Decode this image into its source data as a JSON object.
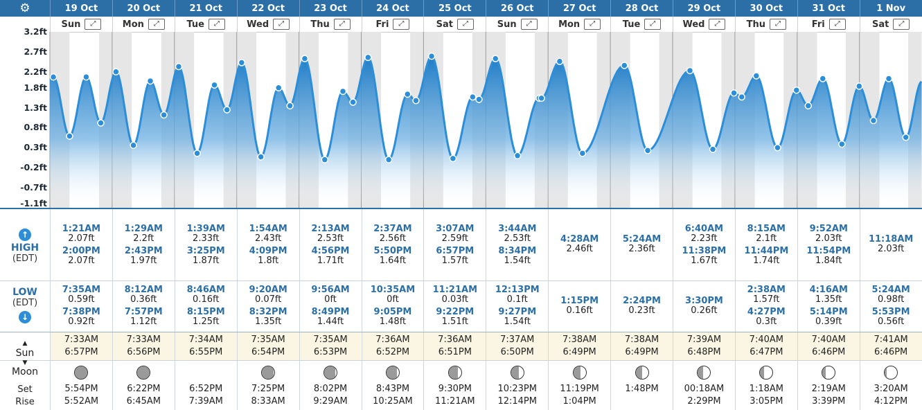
{
  "header": {
    "settings_icon": "gear-icon"
  },
  "days": [
    {
      "date": "19 Oct",
      "wd": "Sun",
      "high": [
        {
          "t": "1:21AM",
          "h": "2.07ft"
        },
        {
          "t": "2:00PM",
          "h": "2.07ft"
        }
      ],
      "low": [
        {
          "t": "7:35AM",
          "h": "0.59ft"
        },
        {
          "t": "7:38PM",
          "h": "0.92ft"
        }
      ],
      "sunrise": "7:33AM",
      "sunset": "6:57PM",
      "moon_set": "5:54PM",
      "moon_rise": "5:52AM",
      "phase": 0.05
    },
    {
      "date": "20 Oct",
      "wd": "Mon",
      "high": [
        {
          "t": "1:29AM",
          "h": "2.2ft"
        },
        {
          "t": "2:43PM",
          "h": "1.97ft"
        }
      ],
      "low": [
        {
          "t": "8:12AM",
          "h": "0.36ft"
        },
        {
          "t": "7:57PM",
          "h": "1.12ft"
        }
      ],
      "sunrise": "7:33AM",
      "sunset": "6:56PM",
      "moon_set": "6:22PM",
      "moon_rise": "6:45AM",
      "phase": 0.0
    },
    {
      "date": "21 Oct",
      "wd": "Tue",
      "high": [
        {
          "t": "1:39AM",
          "h": "2.33ft"
        },
        {
          "t": "3:25PM",
          "h": "1.87ft"
        }
      ],
      "low": [
        {
          "t": "8:46AM",
          "h": "0.16ft"
        },
        {
          "t": "8:15PM",
          "h": "1.25ft"
        }
      ],
      "sunrise": "7:34AM",
      "sunset": "6:55PM",
      "moon_set": "6:52PM",
      "moon_rise": "7:39AM",
      "phase": -1
    },
    {
      "date": "22 Oct",
      "wd": "Wed",
      "high": [
        {
          "t": "1:54AM",
          "h": "2.43ft"
        },
        {
          "t": "4:09PM",
          "h": "1.8ft"
        }
      ],
      "low": [
        {
          "t": "9:20AM",
          "h": "0.07ft"
        },
        {
          "t": "8:32PM",
          "h": "1.35ft"
        }
      ],
      "sunrise": "7:35AM",
      "sunset": "6:54PM",
      "moon_set": "7:25PM",
      "moon_rise": "8:33AM",
      "phase": 0.05
    },
    {
      "date": "23 Oct",
      "wd": "Thu",
      "high": [
        {
          "t": "2:13AM",
          "h": "2.53ft"
        },
        {
          "t": "4:56PM",
          "h": "1.71ft"
        }
      ],
      "low": [
        {
          "t": "9:56AM",
          "h": "0ft"
        },
        {
          "t": "8:49PM",
          "h": "1.44ft"
        }
      ],
      "sunrise": "7:35AM",
      "sunset": "6:53PM",
      "moon_set": "8:02PM",
      "moon_rise": "9:29AM",
      "phase": 0.1
    },
    {
      "date": "24 Oct",
      "wd": "Fri",
      "high": [
        {
          "t": "2:37AM",
          "h": "2.56ft"
        },
        {
          "t": "5:50PM",
          "h": "1.64ft"
        }
      ],
      "low": [
        {
          "t": "10:35AM",
          "h": "0ft"
        },
        {
          "t": "9:05PM",
          "h": "1.48ft"
        }
      ],
      "sunrise": "7:36AM",
      "sunset": "6:52PM",
      "moon_set": "8:43PM",
      "moon_rise": "10:25AM",
      "phase": 0.18
    },
    {
      "date": "25 Oct",
      "wd": "Sat",
      "high": [
        {
          "t": "3:07AM",
          "h": "2.59ft"
        },
        {
          "t": "6:57PM",
          "h": "1.57ft"
        }
      ],
      "low": [
        {
          "t": "11:21AM",
          "h": "0.03ft"
        },
        {
          "t": "9:22PM",
          "h": "1.51ft"
        }
      ],
      "sunrise": "7:36AM",
      "sunset": "6:51PM",
      "moon_set": "9:30PM",
      "moon_rise": "11:21AM",
      "phase": 0.27
    },
    {
      "date": "26 Oct",
      "wd": "Sun",
      "high": [
        {
          "t": "3:44AM",
          "h": "2.53ft"
        },
        {
          "t": "8:34PM",
          "h": "1.54ft"
        }
      ],
      "low": [
        {
          "t": "12:13PM",
          "h": "0.1ft"
        },
        {
          "t": "9:27PM",
          "h": "1.54ft"
        }
      ],
      "sunrise": "7:37AM",
      "sunset": "6:50PM",
      "moon_set": "10:23PM",
      "moon_rise": "12:14PM",
      "phase": 0.36
    },
    {
      "date": "27 Oct",
      "wd": "Mon",
      "high": [
        {
          "t": "4:28AM",
          "h": "2.46ft"
        }
      ],
      "low": [
        {
          "t": "1:15PM",
          "h": "0.16ft"
        }
      ],
      "sunrise": "7:38AM",
      "sunset": "6:49PM",
      "moon_set": "11:19PM",
      "moon_rise": "1:04PM",
      "phase": 0.45
    },
    {
      "date": "28 Oct",
      "wd": "Tue",
      "high": [
        {
          "t": "5:24AM",
          "h": "2.36ft"
        }
      ],
      "low": [
        {
          "t": "2:24PM",
          "h": "0.23ft"
        }
      ],
      "sunrise": "7:38AM",
      "sunset": "6:49PM",
      "moon_set": "",
      "moon_rise": "1:48PM",
      "phase": 0.5
    },
    {
      "date": "29 Oct",
      "wd": "Wed",
      "high": [
        {
          "t": "6:40AM",
          "h": "2.23ft"
        },
        {
          "t": "11:38PM",
          "h": "1.67ft"
        }
      ],
      "low": [
        {
          "t": "3:30PM",
          "h": "0.26ft"
        }
      ],
      "sunrise": "7:39AM",
      "sunset": "6:48PM",
      "moon_set": "00:18AM",
      "moon_rise": "2:29PM",
      "phase": 0.58
    },
    {
      "date": "30 Oct",
      "wd": "Thu",
      "high": [
        {
          "t": "8:15AM",
          "h": "2.1ft"
        },
        {
          "t": "11:44PM",
          "h": "1.74ft"
        }
      ],
      "low": [
        {
          "t": "2:38AM",
          "h": "1.57ft"
        },
        {
          "t": "4:27PM",
          "h": "0.3ft"
        }
      ],
      "sunrise": "7:40AM",
      "sunset": "6:47PM",
      "moon_set": "1:18AM",
      "moon_rise": "3:05PM",
      "phase": 0.66
    },
    {
      "date": "31 Oct",
      "wd": "Fri",
      "high": [
        {
          "t": "9:52AM",
          "h": "2.03ft"
        },
        {
          "t": "11:54PM",
          "h": "1.84ft"
        }
      ],
      "low": [
        {
          "t": "4:16AM",
          "h": "1.35ft"
        },
        {
          "t": "5:14PM",
          "h": "0.39ft"
        }
      ],
      "sunrise": "7:40AM",
      "sunset": "6:46PM",
      "moon_set": "2:19AM",
      "moon_rise": "3:39PM",
      "phase": 0.75
    },
    {
      "date": "1 Nov",
      "wd": "Sat",
      "high": [
        {
          "t": "11:18AM",
          "h": "2.03ft"
        }
      ],
      "low": [
        {
          "t": "5:24AM",
          "h": "0.98ft"
        },
        {
          "t": "5:53PM",
          "h": "0.56ft"
        }
      ],
      "sunrise": "7:41AM",
      "sunset": "6:46PM",
      "moon_set": "3:20AM",
      "moon_rise": "4:12PM",
      "phase": 0.85
    }
  ],
  "labels": {
    "high": "HIGH",
    "high_sub": "(EDT)",
    "low": "LOW",
    "low_sub": "(EDT)",
    "sun": "Sun",
    "moon": "Moon",
    "set": "Set",
    "rise": "Rise",
    "up_arrow": "↑",
    "down_arrow": "↓"
  },
  "colors": {
    "accent": "#2c6fa6",
    "curve": "#2c8ed8",
    "night": "#e6e6e6"
  },
  "chart_data": {
    "type": "area",
    "title": "",
    "ylabel": "ft",
    "ylim": [
      -1.1,
      3.2
    ],
    "yticks": [
      "3.2ft",
      "2.7ft",
      "2.2ft",
      "1.8ft",
      "1.3ft",
      "0.8ft",
      "0.3ft",
      "-0.2ft",
      "-0.7ft",
      "-1.1ft"
    ],
    "series": [
      {
        "name": "",
        "values": [
          {
            "x": "19 Oct 00:00",
            "y": 2.02
          },
          {
            "x": "19 Oct 1:21AM",
            "y": 2.07
          },
          {
            "x": "19 Oct 7:35AM",
            "y": 0.59
          },
          {
            "x": "19 Oct 2:00PM",
            "y": 2.07
          },
          {
            "x": "19 Oct 7:38PM",
            "y": 0.92
          },
          {
            "x": "20 Oct 1:29AM",
            "y": 2.2
          },
          {
            "x": "20 Oct 8:12AM",
            "y": 0.36
          },
          {
            "x": "20 Oct 2:43PM",
            "y": 1.97
          },
          {
            "x": "20 Oct 7:57PM",
            "y": 1.12
          },
          {
            "x": "21 Oct 1:39AM",
            "y": 2.33
          },
          {
            "x": "21 Oct 8:46AM",
            "y": 0.16
          },
          {
            "x": "21 Oct 3:25PM",
            "y": 1.87
          },
          {
            "x": "21 Oct 8:15PM",
            "y": 1.25
          },
          {
            "x": "22 Oct 1:54AM",
            "y": 2.43
          },
          {
            "x": "22 Oct 9:20AM",
            "y": 0.07
          },
          {
            "x": "22 Oct 4:09PM",
            "y": 1.8
          },
          {
            "x": "22 Oct 8:32PM",
            "y": 1.35
          },
          {
            "x": "23 Oct 2:13AM",
            "y": 2.53
          },
          {
            "x": "23 Oct 9:56AM",
            "y": 0.0
          },
          {
            "x": "23 Oct 4:56PM",
            "y": 1.71
          },
          {
            "x": "23 Oct 8:49PM",
            "y": 1.44
          },
          {
            "x": "24 Oct 2:37AM",
            "y": 2.56
          },
          {
            "x": "24 Oct 10:35AM",
            "y": 0.0
          },
          {
            "x": "24 Oct 5:50PM",
            "y": 1.64
          },
          {
            "x": "24 Oct 9:05PM",
            "y": 1.48
          },
          {
            "x": "25 Oct 3:07AM",
            "y": 2.59
          },
          {
            "x": "25 Oct 11:21AM",
            "y": 0.03
          },
          {
            "x": "25 Oct 6:57PM",
            "y": 1.57
          },
          {
            "x": "25 Oct 9:22PM",
            "y": 1.51
          },
          {
            "x": "26 Oct 3:44AM",
            "y": 2.53
          },
          {
            "x": "26 Oct 12:13PM",
            "y": 0.1
          },
          {
            "x": "26 Oct 8:34PM",
            "y": 1.54
          },
          {
            "x": "26 Oct 9:27PM",
            "y": 1.54
          },
          {
            "x": "27 Oct 4:28AM",
            "y": 2.46
          },
          {
            "x": "27 Oct 1:15PM",
            "y": 0.16
          },
          {
            "x": "28 Oct 5:24AM",
            "y": 2.36
          },
          {
            "x": "28 Oct 2:24PM",
            "y": 0.23
          },
          {
            "x": "29 Oct 6:40AM",
            "y": 2.23
          },
          {
            "x": "29 Oct 3:30PM",
            "y": 0.26
          },
          {
            "x": "29 Oct 11:38PM",
            "y": 1.67
          },
          {
            "x": "30 Oct 2:38AM",
            "y": 1.57
          },
          {
            "x": "30 Oct 8:15AM",
            "y": 2.1
          },
          {
            "x": "30 Oct 4:27PM",
            "y": 0.3
          },
          {
            "x": "30 Oct 11:44PM",
            "y": 1.74
          },
          {
            "x": "31 Oct 4:16AM",
            "y": 1.35
          },
          {
            "x": "31 Oct 9:52AM",
            "y": 2.03
          },
          {
            "x": "31 Oct 5:14PM",
            "y": 0.39
          },
          {
            "x": "31 Oct 11:54PM",
            "y": 1.84
          },
          {
            "x": "1 Nov 5:24AM",
            "y": 0.98
          },
          {
            "x": "1 Nov 11:18AM",
            "y": 2.03
          },
          {
            "x": "1 Nov 5:53PM",
            "y": 0.56
          },
          {
            "x": "1 Nov 23:59",
            "y": 1.95
          }
        ]
      }
    ],
    "grid": true,
    "legend": "none"
  }
}
